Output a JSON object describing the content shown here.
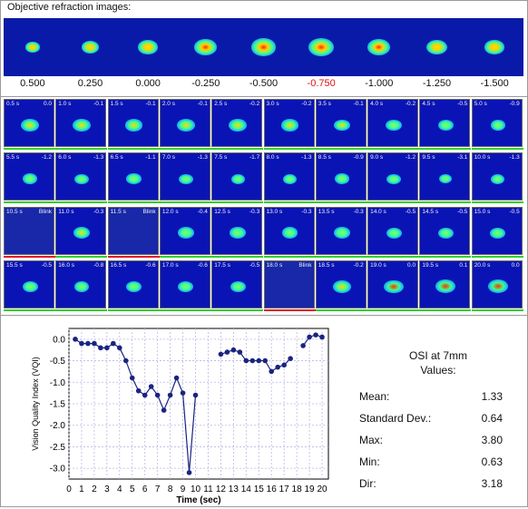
{
  "header": {
    "title": "Objective refraction images:"
  },
  "refraction": {
    "values": [
      "0.500",
      "0.250",
      "0.000",
      "-0.250",
      "-0.500",
      "-0.750",
      "-1.000",
      "-1.250",
      "-1.500"
    ],
    "selected_index": 5,
    "colors": {
      "strip_bg": "#0a1aa8",
      "selected_text": "#e01010"
    }
  },
  "frames": [
    {
      "time": "0.5 s",
      "val": "0.0",
      "status": "good",
      "intensity": 0.7
    },
    {
      "time": "1.0 s",
      "val": "-0.1",
      "status": "good",
      "intensity": 0.7
    },
    {
      "time": "1.5 s",
      "val": "-0.1",
      "status": "good",
      "intensity": 0.7
    },
    {
      "time": "2.0 s",
      "val": "-0.1",
      "status": "good",
      "intensity": 0.75
    },
    {
      "time": "2.5 s",
      "val": "-0.2",
      "status": "good",
      "intensity": 0.7
    },
    {
      "time": "3.0 s",
      "val": "-0.2",
      "status": "good",
      "intensity": 0.65
    },
    {
      "time": "3.5 s",
      "val": "-0.1",
      "status": "good",
      "intensity": 0.6
    },
    {
      "time": "4.0 s",
      "val": "-0.2",
      "status": "good",
      "intensity": 0.55
    },
    {
      "time": "4.5 s",
      "val": "-0.5",
      "status": "good",
      "intensity": 0.5
    },
    {
      "time": "5.0 s",
      "val": "-0.9",
      "status": "good",
      "intensity": 0.45
    },
    {
      "time": "5.5 s",
      "val": "-1.2",
      "status": "good",
      "intensity": 0.45
    },
    {
      "time": "6.0 s",
      "val": "-1.3",
      "status": "good",
      "intensity": 0.4
    },
    {
      "time": "6.5 s",
      "val": "-1.1",
      "status": "good",
      "intensity": 0.45
    },
    {
      "time": "7.0 s",
      "val": "-1.3",
      "status": "good",
      "intensity": 0.4
    },
    {
      "time": "7.5 s",
      "val": "-1.7",
      "status": "good",
      "intensity": 0.35
    },
    {
      "time": "8.0 s",
      "val": "-1.3",
      "status": "good",
      "intensity": 0.4
    },
    {
      "time": "8.5 s",
      "val": "-0.9",
      "status": "good",
      "intensity": 0.45
    },
    {
      "time": "9.0 s",
      "val": "-1.2",
      "status": "good",
      "intensity": 0.4
    },
    {
      "time": "9.5 s",
      "val": "-3.1",
      "status": "good",
      "intensity": 0.3
    },
    {
      "time": "10.0 s",
      "val": "-1.3",
      "status": "good",
      "intensity": 0.4
    },
    {
      "time": "10.5 s",
      "val": "Blink",
      "status": "blink",
      "intensity": 0
    },
    {
      "time": "11.0 s",
      "val": "-0.3",
      "status": "good",
      "intensity": 0.6
    },
    {
      "time": "11.5 s",
      "val": "Blink",
      "status": "blink",
      "intensity": 0
    },
    {
      "time": "12.0 s",
      "val": "-0.4",
      "status": "good",
      "intensity": 0.55
    },
    {
      "time": "12.5 s",
      "val": "-0.3",
      "status": "good",
      "intensity": 0.55
    },
    {
      "time": "13.0 s",
      "val": "-0.3",
      "status": "good",
      "intensity": 0.55
    },
    {
      "time": "13.5 s",
      "val": "-0.3",
      "status": "good",
      "intensity": 0.55
    },
    {
      "time": "14.0 s",
      "val": "-0.5",
      "status": "good",
      "intensity": 0.5
    },
    {
      "time": "14.5 s",
      "val": "-0.5",
      "status": "good",
      "intensity": 0.5
    },
    {
      "time": "15.0 s",
      "val": "-0.5",
      "status": "good",
      "intensity": 0.5
    },
    {
      "time": "15.5 s",
      "val": "-0.5",
      "status": "good",
      "intensity": 0.5
    },
    {
      "time": "16.0 s",
      "val": "-0.8",
      "status": "good",
      "intensity": 0.45
    },
    {
      "time": "16.5 s",
      "val": "-0.6",
      "status": "good",
      "intensity": 0.5
    },
    {
      "time": "17.0 s",
      "val": "-0.6",
      "status": "good",
      "intensity": 0.5
    },
    {
      "time": "17.5 s",
      "val": "-0.5",
      "status": "good",
      "intensity": 0.5
    },
    {
      "time": "18.0 s",
      "val": "Blink",
      "status": "blink",
      "intensity": 0
    },
    {
      "time": "18.5 s",
      "val": "-0.2",
      "status": "good",
      "intensity": 0.7
    },
    {
      "time": "19.0 s",
      "val": "0.0",
      "status": "good",
      "intensity": 0.8
    },
    {
      "time": "19.5 s",
      "val": "0.1",
      "status": "good",
      "intensity": 0.85
    },
    {
      "time": "20.0 s",
      "val": "0.0",
      "status": "good",
      "intensity": 0.85
    }
  ],
  "status_colors": {
    "good": "#2fd02f",
    "blink": "#e0102a"
  },
  "chart_data": {
    "type": "line",
    "title": "",
    "xlabel": "Time (sec)",
    "ylabel": "Vision Quality Index (VQI)",
    "xlim": [
      0,
      20.5
    ],
    "ylim": [
      -3.25,
      0.25
    ],
    "xticks": [
      "0",
      "1",
      "2",
      "3",
      "4",
      "5",
      "6",
      "7",
      "8",
      "9",
      "10",
      "11",
      "12",
      "13",
      "14",
      "15",
      "16",
      "17",
      "18",
      "19",
      "20"
    ],
    "yticks": [
      "0.0",
      "-0.5",
      "-1.0",
      "-1.5",
      "-2.0",
      "-2.5",
      "-3.0"
    ],
    "grid": true,
    "series": [
      {
        "name": "",
        "segments": [
          {
            "x": [
              0.5,
              1.0,
              1.5,
              2.0,
              2.5,
              3.0,
              3.5,
              4.0,
              4.5,
              5.0,
              5.5,
              6.0,
              6.5,
              7.0,
              7.5,
              8.0,
              8.5,
              9.0,
              9.5,
              10.0
            ],
            "y": [
              0.0,
              -0.1,
              -0.1,
              -0.1,
              -0.2,
              -0.2,
              -0.1,
              -0.2,
              -0.5,
              -0.9,
              -1.2,
              -1.3,
              -1.1,
              -1.3,
              -1.65,
              -1.3,
              -0.9,
              -1.25,
              -3.1,
              -1.3
            ]
          },
          {
            "x": [
              12.0,
              12.5,
              13.0,
              13.5,
              14.0,
              14.5,
              15.0,
              15.5,
              16.0,
              16.5,
              17.0,
              17.5
            ],
            "y": [
              -0.35,
              -0.3,
              -0.25,
              -0.3,
              -0.5,
              -0.5,
              -0.5,
              -0.5,
              -0.75,
              -0.65,
              -0.6,
              -0.45
            ]
          },
          {
            "x": [
              18.5,
              19.0,
              19.5,
              20.0
            ],
            "y": [
              -0.15,
              0.05,
              0.1,
              0.05
            ]
          }
        ]
      }
    ],
    "color": "#1a2480"
  },
  "stats": {
    "title": "OSI at 7mm Values:",
    "rows": [
      {
        "label": "Mean:",
        "value": "1.33"
      },
      {
        "label": "Standard Dev.:",
        "value": "0.64"
      },
      {
        "label": "Max:",
        "value": "3.80"
      },
      {
        "label": "Min:",
        "value": "0.63"
      },
      {
        "label": "Dir:",
        "value": "3.18"
      }
    ]
  }
}
